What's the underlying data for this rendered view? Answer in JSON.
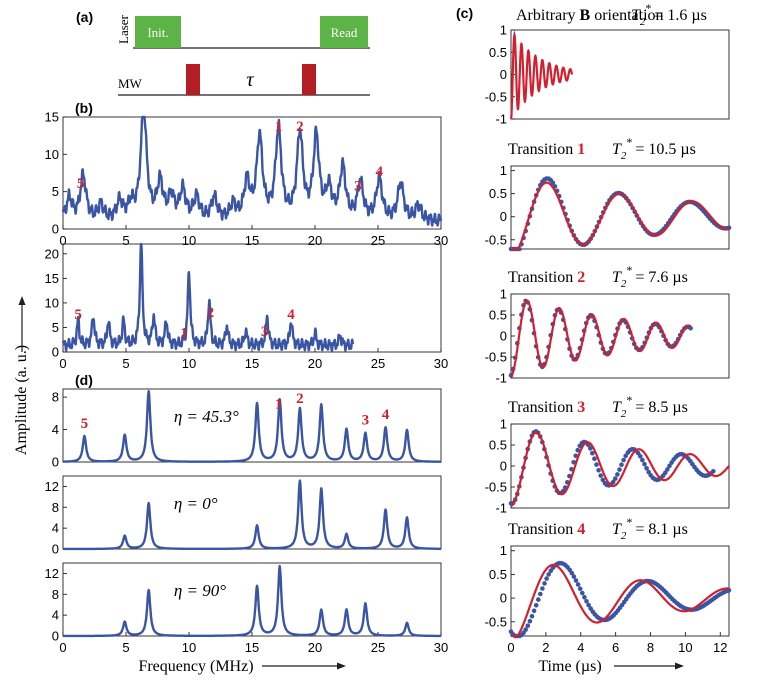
{
  "colors": {
    "blue": "#3a55a4",
    "red": "#d3202f",
    "green": "#5cb446",
    "black": "#231f20"
  },
  "figure": {
    "y_label": "Amplitude (a. u.)",
    "x_label_left": "Frequency (MHz)",
    "x_label_right": "Time (µs)"
  },
  "panel_a": {
    "label": "(a)",
    "laser_label": "Laser",
    "init_label": "Init.",
    "read_label": "Read",
    "mw_label": "MW",
    "tau_label": "τ"
  },
  "chart_data": [
    {
      "id": "b-top",
      "panel_label": "(b)",
      "type": "line",
      "xlim": [
        0,
        30
      ],
      "ylim": [
        0,
        15
      ],
      "xticks": [
        "0",
        "5",
        "10",
        "15",
        "20",
        "25",
        "30"
      ],
      "yticks": [
        "0",
        "5",
        "10",
        "15"
      ],
      "peaks": [
        [
          0.5,
          3
        ],
        [
          1.6,
          6
        ],
        [
          3,
          2
        ],
        [
          4.5,
          2.5
        ],
        [
          5.4,
          2
        ],
        [
          6.4,
          15
        ],
        [
          7.7,
          5
        ],
        [
          8.6,
          3
        ],
        [
          9.5,
          4
        ],
        [
          10.6,
          3
        ],
        [
          12,
          3
        ],
        [
          13.5,
          2
        ],
        [
          14.6,
          5
        ],
        [
          15.6,
          11
        ],
        [
          17.1,
          12
        ],
        [
          18.8,
          11.5
        ],
        [
          20.1,
          11
        ],
        [
          21.1,
          4
        ],
        [
          22.2,
          7
        ],
        [
          23.6,
          5
        ],
        [
          25.1,
          5.5
        ],
        [
          26.8,
          5
        ],
        [
          28.2,
          2
        ]
      ],
      "annotations": [
        {
          "text": "5",
          "x": 1.4
        },
        {
          "text": "1",
          "x": 17.1
        },
        {
          "text": "2",
          "x": 18.8
        },
        {
          "text": "3",
          "x": 23.4
        },
        {
          "text": "4",
          "x": 25.1
        }
      ]
    },
    {
      "id": "b-bottom",
      "type": "line",
      "xlim": [
        0,
        30
      ],
      "ylim": [
        0,
        22
      ],
      "x_end": 23,
      "xticks": [
        "0",
        "5",
        "10",
        "15",
        "20",
        "25",
        "30"
      ],
      "yticks": [
        "0",
        "5",
        "10",
        "15",
        "20"
      ],
      "peaks": [
        [
          1.2,
          5
        ],
        [
          2.4,
          6
        ],
        [
          3.6,
          5
        ],
        [
          4.8,
          5
        ],
        [
          6.2,
          21
        ],
        [
          7.2,
          6
        ],
        [
          8.2,
          5
        ],
        [
          10,
          15
        ],
        [
          11.6,
          9
        ],
        [
          13,
          4
        ],
        [
          14.5,
          3
        ],
        [
          16.2,
          6
        ],
        [
          18.1,
          5
        ],
        [
          20,
          2.5
        ],
        [
          22,
          2
        ]
      ],
      "annotations": [
        {
          "text": "5",
          "x": 1.2
        },
        {
          "text": "1",
          "x": 9.6
        },
        {
          "text": "2",
          "x": 11.7
        },
        {
          "text": "3",
          "x": 16
        },
        {
          "text": "4",
          "x": 18.1
        }
      ]
    },
    {
      "id": "d-45",
      "panel_label": "(d)",
      "type": "line",
      "xlim": [
        0,
        30
      ],
      "ylim": [
        0,
        9
      ],
      "xticks": [],
      "yticks": [
        "0",
        "4",
        "8"
      ],
      "series_label": "η = 45.3°",
      "peaks": [
        [
          1.7,
          3.2
        ],
        [
          4.9,
          3.3
        ],
        [
          6.8,
          8.7
        ],
        [
          15.4,
          7.2
        ],
        [
          17.2,
          7.6
        ],
        [
          18.8,
          6.5
        ],
        [
          20.5,
          7
        ],
        [
          22.5,
          4
        ],
        [
          24,
          3.5
        ],
        [
          25.6,
          4.2
        ],
        [
          27.3,
          3.9
        ]
      ],
      "annotations": [
        {
          "text": "5",
          "x": 1.7
        },
        {
          "text": "1",
          "x": 17.1
        },
        {
          "text": "2",
          "x": 18.8
        },
        {
          "text": "3",
          "x": 24
        },
        {
          "text": "4",
          "x": 25.6
        }
      ]
    },
    {
      "id": "d-0",
      "type": "line",
      "xlim": [
        0,
        30
      ],
      "ylim": [
        0,
        14
      ],
      "xticks": [],
      "yticks": [
        "0",
        "4",
        "8",
        "12"
      ],
      "series_label": "η = 0°",
      "peaks": [
        [
          4.9,
          2.5
        ],
        [
          6.8,
          8.8
        ],
        [
          15.4,
          4.5
        ],
        [
          18.8,
          13
        ],
        [
          20.5,
          11.5
        ],
        [
          22.5,
          2.8
        ],
        [
          25.6,
          7.5
        ],
        [
          27.3,
          6
        ]
      ]
    },
    {
      "id": "d-90",
      "type": "line",
      "xlim": [
        0,
        30
      ],
      "ylim": [
        0,
        14
      ],
      "xticks": [
        "0",
        "5",
        "10",
        "15",
        "20",
        "25",
        "30"
      ],
      "yticks": [
        "0",
        "4",
        "8",
        "12"
      ],
      "series_label": "η = 90°",
      "peaks": [
        [
          4.9,
          2.7
        ],
        [
          6.8,
          8.8
        ],
        [
          15.4,
          9.5
        ],
        [
          17.2,
          13.3
        ],
        [
          20.5,
          5
        ],
        [
          22.5,
          5
        ],
        [
          24,
          6.2
        ],
        [
          27.3,
          2.5
        ]
      ]
    },
    {
      "id": "c0",
      "panel_label": "(c)",
      "type": "line",
      "title_parts": [
        "Arbitrary ",
        "B",
        " orientation"
      ],
      "t2_value": "= 1.6 µs",
      "xlim": [
        0,
        12.5
      ],
      "ylim": [
        -1,
        1
      ],
      "xticks": [],
      "yticks": [
        "-1",
        "-0.5",
        "0",
        "0.5",
        "1"
      ],
      "fit": {
        "t_end": 3.5,
        "freq": 2.5,
        "tau": 1.6,
        "amp": 1.0,
        "phase": 3.14
      },
      "data_osc": {
        "freq": 2.5,
        "tau": 1.4,
        "amp": 0.95,
        "phase": 3.14,
        "offset": 0
      }
    },
    {
      "id": "c1",
      "type": "scatter",
      "title": "Transition",
      "transition": "1",
      "t2_value": "= 10.5 µs",
      "xlim": [
        0,
        12.5
      ],
      "ylim": [
        -0.7,
        1.1
      ],
      "xticks": [],
      "yticks": [
        "-0.5",
        "0",
        "0.5",
        "1"
      ],
      "fit": {
        "t_end": 12.5,
        "freq": 0.24,
        "tau": 10.5,
        "amp": 0.9,
        "phase": 3.14
      },
      "data_osc": {
        "freq": 0.245,
        "tau": 9.0,
        "amp": 1.0,
        "phase": 3.0,
        "offset": 0.08
      },
      "data_range": [
        0,
        12.5
      ]
    },
    {
      "id": "c2",
      "type": "scatter",
      "title": "Transition",
      "transition": "2",
      "t2_value": "= 7.6 µs",
      "xlim": [
        0,
        12.5
      ],
      "ylim": [
        -1,
        1
      ],
      "xticks": [],
      "yticks": [
        "-1",
        "-0.5",
        "0",
        "0.5",
        "1"
      ],
      "fit": {
        "t_end": 10.3,
        "freq": 0.54,
        "tau": 7.6,
        "amp": 0.95,
        "phase": 3.14
      },
      "data_osc": {
        "freq": 0.54,
        "tau": 7.0,
        "amp": 0.95,
        "phase": 3.3,
        "offset": 0
      },
      "data_range": [
        0,
        10.3
      ]
    },
    {
      "id": "c3",
      "type": "scatter",
      "title": "Transition",
      "transition": "3",
      "t2_value": "= 8.5 µs",
      "xlim": [
        0,
        12.5
      ],
      "ylim": [
        -1,
        1
      ],
      "xticks": [],
      "yticks": [
        "-1",
        "-0.5",
        "0",
        "0.5",
        "1"
      ],
      "fit": {
        "t_end": 12.5,
        "freq": 0.34,
        "tau": 8.5,
        "amp": 0.95,
        "phase": 3.14
      },
      "data_osc": {
        "freq": 0.36,
        "tau": 8.0,
        "amp": 0.95,
        "phase": 3.0,
        "offset": 0.05
      },
      "data_range": [
        0,
        11.6
      ]
    },
    {
      "id": "c4",
      "type": "scatter",
      "title": "Transition",
      "transition": "4",
      "t2_value": "= 8.1 µs",
      "xlim": [
        0,
        12.5
      ],
      "ylim": [
        -0.8,
        1.1
      ],
      "xticks": [
        "0",
        "2",
        "4",
        "6",
        "8",
        "10",
        "12"
      ],
      "yticks": [
        "-0.5",
        "0",
        "0.5",
        "1"
      ],
      "fit": {
        "t_end": 12.5,
        "freq": 0.2,
        "tau": 8.1,
        "amp": 0.95,
        "phase": 3.14
      },
      "data_osc": {
        "freq": 0.2,
        "tau": 7.5,
        "amp": 1.0,
        "phase": 2.6,
        "offset": 0.15
      },
      "data_range": [
        0,
        12.5
      ]
    }
  ]
}
